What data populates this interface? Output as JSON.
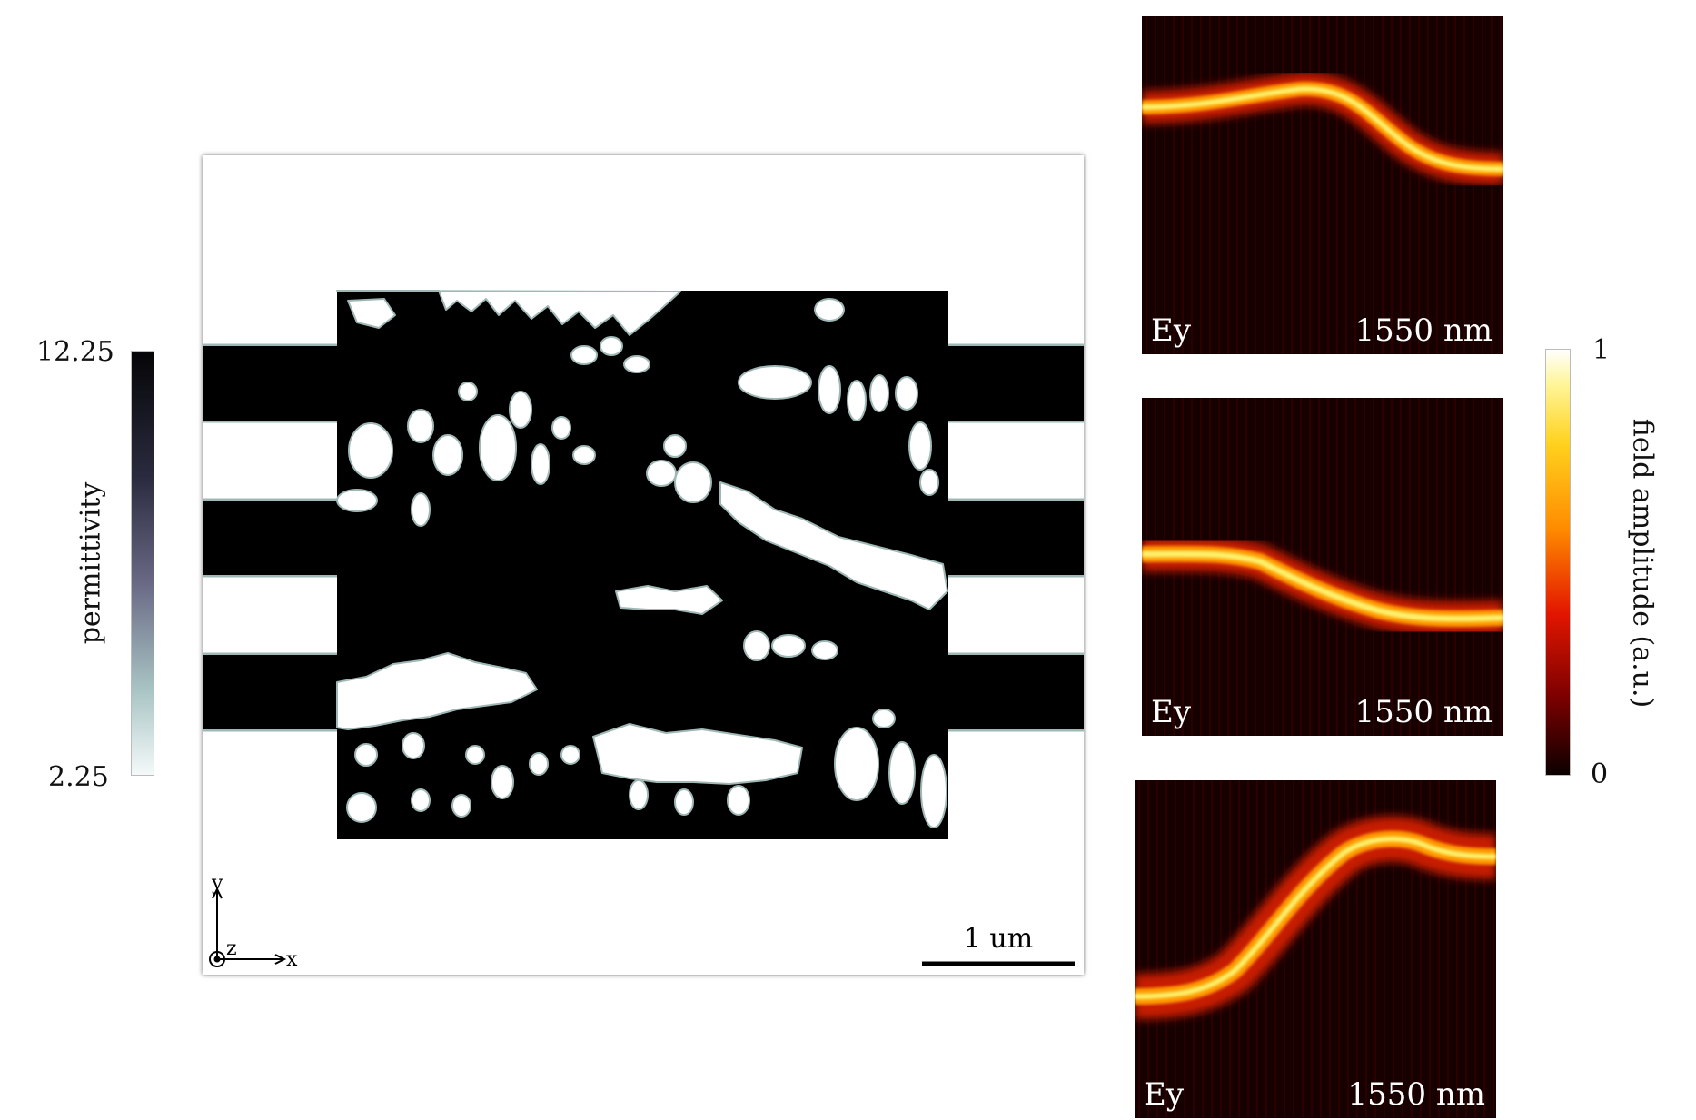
{
  "permittivity_colorbar": {
    "label": "permittivity",
    "max": "12.25",
    "min": "2.25",
    "colors": [
      "#050507",
      "#6a6a86",
      "#a9c4c4",
      "#f4f9f9"
    ]
  },
  "device": {
    "scale_bar": "1 um",
    "axes": {
      "y": "y",
      "z": "z",
      "x": "x"
    },
    "core_color": "#000000",
    "cladding_color": "#ffffff",
    "edge_color": "#9fb8b5"
  },
  "field_maps": [
    {
      "component": "Ey",
      "wavelength": "1550 nm",
      "route": "top input to middle output"
    },
    {
      "component": "Ey",
      "wavelength": "1550 nm",
      "route": "middle input to bottom output"
    },
    {
      "component": "Ey",
      "wavelength": "1550 nm",
      "route": "bottom input to top output"
    }
  ],
  "field_colorbar": {
    "label": "field amplitude (a.u.)",
    "max": "1",
    "min": "0",
    "colors": [
      "#ffffff",
      "#ffd21e",
      "#ff8c00",
      "#e31600",
      "#7a0000",
      "#0c0000"
    ]
  }
}
